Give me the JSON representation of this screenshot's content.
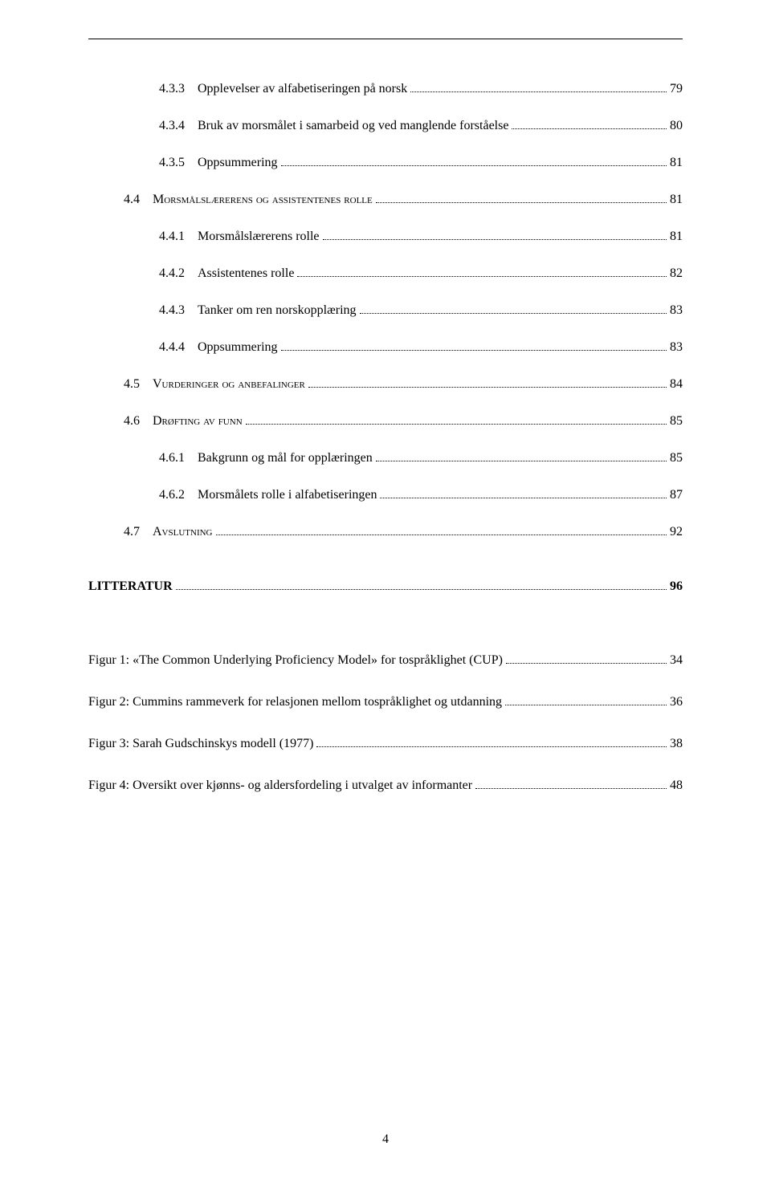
{
  "colors": {
    "text": "#000000",
    "background": "#ffffff",
    "rule": "#000000"
  },
  "typography": {
    "font_family": "Times New Roman",
    "body_size_pt": 12,
    "line_height": 2.0
  },
  "toc": [
    {
      "indent": 2,
      "num": "4.3.3",
      "title": "Opplevelser av alfabetiseringen på norsk",
      "page": "79",
      "style": "normal"
    },
    {
      "indent": 2,
      "num": "4.3.4",
      "title": "Bruk av morsmålet i samarbeid og ved manglende forståelse",
      "page": "80",
      "style": "normal"
    },
    {
      "indent": 2,
      "num": "4.3.5",
      "title": "Oppsummering",
      "page": "81",
      "style": "normal"
    },
    {
      "indent": 1,
      "num": "4.4",
      "title": "Morsmålslærerens og assistentenes rolle",
      "page": "81",
      "style": "smallcaps"
    },
    {
      "indent": 2,
      "num": "4.4.1",
      "title": "Morsmålslærerens rolle",
      "page": "81",
      "style": "normal"
    },
    {
      "indent": 2,
      "num": "4.4.2",
      "title": "Assistentenes rolle",
      "page": "82",
      "style": "normal"
    },
    {
      "indent": 2,
      "num": "4.4.3",
      "title": "Tanker om ren norskopplæring",
      "page": "83",
      "style": "normal"
    },
    {
      "indent": 2,
      "num": "4.4.4",
      "title": "Oppsummering",
      "page": "83",
      "style": "normal"
    },
    {
      "indent": 1,
      "num": "4.5",
      "title": "Vurderinger og anbefalinger",
      "page": "84",
      "style": "smallcaps"
    },
    {
      "indent": 1,
      "num": "4.6",
      "title": "Drøfting av funn",
      "page": "85",
      "style": "smallcaps"
    },
    {
      "indent": 2,
      "num": "4.6.1",
      "title": "Bakgrunn og mål for opplæringen",
      "page": "85",
      "style": "normal"
    },
    {
      "indent": 2,
      "num": "4.6.2",
      "title": "Morsmålets rolle i alfabetiseringen",
      "page": "87",
      "style": "normal"
    },
    {
      "indent": 1,
      "num": "4.7",
      "title": "Avslutning",
      "page": "92",
      "style": "smallcaps"
    }
  ],
  "chapter": {
    "title": "LITTERATUR",
    "page": "96"
  },
  "figures": [
    {
      "label": "Figur 1: «The Common Underlying Proficiency Model» for tospråklighet (CUP)",
      "page": "34"
    },
    {
      "label": "Figur 2: Cummins rammeverk for relasjonen mellom tospråklighet og utdanning",
      "page": "36"
    },
    {
      "label": "Figur 3: Sarah Gudschinskys modell (1977)",
      "page": "38"
    },
    {
      "label": "Figur 4: Oversikt over kjønns- og aldersfordeling i utvalget av informanter",
      "page": "48"
    }
  ],
  "page_number": "4"
}
